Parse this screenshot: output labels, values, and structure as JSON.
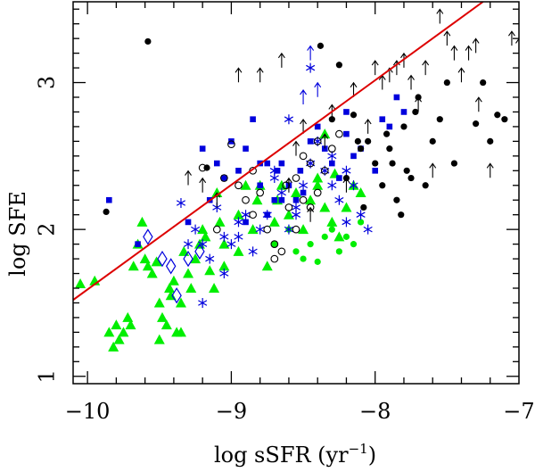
{
  "chart_data": {
    "type": "scatter",
    "title": "",
    "xlabel": "log sSFR (yr",
    "xlabel_sup": "−1",
    "xlabel_close": ")",
    "ylabel": "log SFE",
    "xlim": [
      -10.1,
      -7.0
    ],
    "ylim": [
      0.95,
      3.55
    ],
    "xticks": [
      {
        "value": -10,
        "label": "−10"
      },
      {
        "value": -9,
        "label": "−9"
      },
      {
        "value": -8,
        "label": "−8"
      },
      {
        "value": -7,
        "label": "−7"
      }
    ],
    "yticks": [
      {
        "value": 1,
        "label": "1"
      },
      {
        "value": 2,
        "label": "2"
      },
      {
        "value": 3,
        "label": "3"
      }
    ],
    "colors": {
      "black": "#000000",
      "blue": "#0000dd",
      "green": "#00ee00",
      "red": "#dd0000"
    },
    "fit_line": {
      "name": "relation",
      "color": "#dd0000",
      "x": [
        -10.1,
        -7.25
      ],
      "y": [
        1.52,
        3.55
      ]
    },
    "series": [
      {
        "name": "green triangles",
        "marker": "triangle",
        "color": "#00ee00",
        "points": [
          [
            -10.05,
            1.63
          ],
          [
            -9.95,
            1.65
          ],
          [
            -9.85,
            1.3
          ],
          [
            -9.82,
            1.2
          ],
          [
            -9.8,
            1.35
          ],
          [
            -9.78,
            1.25
          ],
          [
            -9.75,
            1.3
          ],
          [
            -9.72,
            1.4
          ],
          [
            -9.7,
            1.35
          ],
          [
            -9.68,
            1.75
          ],
          [
            -9.65,
            1.9
          ],
          [
            -9.62,
            2.05
          ],
          [
            -9.6,
            1.8
          ],
          [
            -9.58,
            1.75
          ],
          [
            -9.55,
            1.7
          ],
          [
            -9.52,
            1.78
          ],
          [
            -9.5,
            1.5
          ],
          [
            -9.48,
            1.4
          ],
          [
            -9.45,
            1.35
          ],
          [
            -9.43,
            1.6
          ],
          [
            -9.42,
            1.55
          ],
          [
            -9.4,
            1.65
          ],
          [
            -9.38,
            1.3
          ],
          [
            -9.35,
            1.5
          ],
          [
            -9.33,
            1.85
          ],
          [
            -9.3,
            1.7
          ],
          [
            -9.28,
            1.6
          ],
          [
            -9.25,
            1.8
          ],
          [
            -9.22,
            1.9
          ],
          [
            -9.2,
            2.0
          ],
          [
            -9.18,
            1.95
          ],
          [
            -9.15,
            1.72
          ],
          [
            -9.12,
            1.6
          ],
          [
            -9.1,
            2.25
          ],
          [
            -9.08,
            2.05
          ],
          [
            -9.05,
            1.9
          ],
          [
            -8.95,
            2.1
          ],
          [
            -8.9,
            2.3
          ],
          [
            -8.85,
            2.0
          ],
          [
            -8.82,
            2.2
          ],
          [
            -8.8,
            2.3
          ],
          [
            -8.75,
            1.75
          ],
          [
            -8.7,
            2.05
          ],
          [
            -8.68,
            2.2
          ],
          [
            -8.65,
            2.3
          ],
          [
            -8.6,
            2.1
          ],
          [
            -8.55,
            2.25
          ],
          [
            -8.5,
            2.0
          ],
          [
            -8.45,
            2.2
          ],
          [
            -8.4,
            2.3
          ],
          [
            -8.35,
            2.15
          ],
          [
            -8.3,
            2.05
          ],
          [
            -8.25,
            1.95
          ],
          [
            -8.2,
            2.15
          ],
          [
            -8.15,
            2.3
          ],
          [
            -8.1,
            2.25
          ],
          [
            -8.4,
            2.35
          ],
          [
            -9.05,
            1.75
          ],
          [
            -8.28,
            2.38
          ],
          [
            -8.35,
            2.65
          ],
          [
            -8.95,
            1.85
          ],
          [
            -9.35,
            1.3
          ],
          [
            -9.5,
            1.25
          ]
        ]
      },
      {
        "name": "green dots",
        "marker": "filled-circle",
        "color": "#00ee00",
        "points": [
          [
            -8.7,
            1.9
          ],
          [
            -8.5,
            1.8
          ],
          [
            -8.4,
            1.78
          ],
          [
            -8.35,
            1.95
          ],
          [
            -8.3,
            2.0
          ],
          [
            -8.25,
            1.85
          ],
          [
            -8.2,
            1.95
          ],
          [
            -8.15,
            1.9
          ],
          [
            -8.1,
            2.05
          ],
          [
            -8.6,
            2.0
          ],
          [
            -8.45,
            1.9
          ],
          [
            -8.55,
            1.85
          ]
        ]
      },
      {
        "name": "blue squares",
        "marker": "filled-square",
        "color": "#0000dd",
        "points": [
          [
            -9.85,
            2.2
          ],
          [
            -9.65,
            1.9
          ],
          [
            -9.3,
            2.05
          ],
          [
            -9.2,
            2.55
          ],
          [
            -9.1,
            2.45
          ],
          [
            -9.05,
            2.35
          ],
          [
            -9.0,
            2.6
          ],
          [
            -8.95,
            2.4
          ],
          [
            -8.9,
            2.55
          ],
          [
            -8.85,
            2.75
          ],
          [
            -8.8,
            2.3
          ],
          [
            -8.75,
            2.45
          ],
          [
            -8.7,
            2.2
          ],
          [
            -8.68,
            2.4
          ],
          [
            -8.65,
            2.45
          ],
          [
            -8.6,
            2.3
          ],
          [
            -8.55,
            2.2
          ],
          [
            -8.52,
            2.4
          ],
          [
            -8.5,
            2.25
          ],
          [
            -8.45,
            2.6
          ],
          [
            -8.4,
            2.7
          ],
          [
            -8.35,
            2.55
          ],
          [
            -8.3,
            2.45
          ],
          [
            -8.25,
            2.35
          ],
          [
            -8.2,
            2.8
          ],
          [
            -8.15,
            2.5
          ],
          [
            -8.1,
            2.55
          ],
          [
            -8.0,
            2.4
          ],
          [
            -7.95,
            2.75
          ],
          [
            -7.9,
            2.7
          ],
          [
            -7.85,
            2.9
          ],
          [
            -7.8,
            2.8
          ],
          [
            -8.65,
            2.2
          ],
          [
            -8.2,
            2.65
          ],
          [
            -9.15,
            2.2
          ],
          [
            -8.75,
            2.1
          ],
          [
            -8.9,
            2.05
          ],
          [
            -8.8,
            2.45
          ]
        ]
      },
      {
        "name": "blue asterisks",
        "marker": "asterisk",
        "color": "#0000dd",
        "points": [
          [
            -9.35,
            2.18
          ],
          [
            -9.25,
            2.0
          ],
          [
            -9.2,
            1.9
          ],
          [
            -9.15,
            1.8
          ],
          [
            -9.1,
            2.15
          ],
          [
            -9.05,
            1.95
          ],
          [
            -9.0,
            1.9
          ],
          [
            -8.95,
            2.05
          ],
          [
            -8.9,
            2.1
          ],
          [
            -8.85,
            1.85
          ],
          [
            -8.8,
            2.0
          ],
          [
            -8.75,
            2.1
          ],
          [
            -8.7,
            2.35
          ],
          [
            -8.65,
            2.25
          ],
          [
            -8.6,
            2.0
          ],
          [
            -8.55,
            2.15
          ],
          [
            -8.5,
            2.3
          ],
          [
            -8.45,
            2.45
          ],
          [
            -8.4,
            2.6
          ],
          [
            -8.35,
            2.4
          ],
          [
            -8.3,
            2.3
          ],
          [
            -8.25,
            2.2
          ],
          [
            -8.2,
            2.4
          ],
          [
            -8.15,
            2.3
          ],
          [
            -8.1,
            2.1
          ],
          [
            -8.05,
            2.0
          ],
          [
            -8.45,
            3.1
          ],
          [
            -8.6,
            2.75
          ],
          [
            -9.2,
            1.5
          ],
          [
            -9.05,
            1.7
          ],
          [
            -8.95,
            1.95
          ],
          [
            -8.7,
            2.4
          ],
          [
            -8.55,
            2.1
          ],
          [
            -8.3,
            2.5
          ],
          [
            -8.2,
            2.05
          ],
          [
            -9.3,
            1.9
          ]
        ]
      },
      {
        "name": "blue diamonds",
        "marker": "open-diamond",
        "color": "#0000dd",
        "points": [
          [
            -9.58,
            1.95
          ],
          [
            -9.48,
            1.8
          ],
          [
            -9.42,
            1.75
          ],
          [
            -9.38,
            1.55
          ],
          [
            -9.3,
            1.8
          ],
          [
            -9.22,
            1.85
          ]
        ]
      },
      {
        "name": "open circles",
        "marker": "open-circle",
        "color": "#000000",
        "points": [
          [
            -9.2,
            2.42
          ],
          [
            -9.05,
            2.35
          ],
          [
            -9.0,
            2.58
          ],
          [
            -8.95,
            2.3
          ],
          [
            -8.9,
            2.2
          ],
          [
            -8.85,
            2.1
          ],
          [
            -8.8,
            2.25
          ],
          [
            -8.75,
            2.0
          ],
          [
            -8.7,
            1.9
          ],
          [
            -8.65,
            1.85
          ],
          [
            -8.6,
            2.15
          ],
          [
            -8.55,
            2.35
          ],
          [
            -8.5,
            2.5
          ],
          [
            -8.45,
            2.45
          ],
          [
            -8.4,
            2.6
          ],
          [
            -8.35,
            2.4
          ],
          [
            -8.3,
            2.55
          ],
          [
            -8.25,
            2.65
          ],
          [
            -8.55,
            2.0
          ],
          [
            -8.7,
            1.8
          ],
          [
            -8.62,
            2.3
          ],
          [
            -8.5,
            2.2
          ],
          [
            -8.4,
            2.25
          ],
          [
            -9.1,
            2.0
          ],
          [
            -8.85,
            2.4
          ],
          [
            -8.45,
            2.15
          ]
        ]
      },
      {
        "name": "black dots",
        "marker": "filled-circle",
        "color": "#000000",
        "points": [
          [
            -9.87,
            2.12
          ],
          [
            -9.58,
            3.28
          ],
          [
            -9.17,
            2.42
          ],
          [
            -8.38,
            3.25
          ],
          [
            -8.25,
            3.12
          ],
          [
            -8.15,
            2.78
          ],
          [
            -8.12,
            2.6
          ],
          [
            -8.1,
            2.55
          ],
          [
            -8.08,
            2.15
          ],
          [
            -8.05,
            2.6
          ],
          [
            -8.0,
            2.45
          ],
          [
            -7.95,
            2.3
          ],
          [
            -7.92,
            2.65
          ],
          [
            -7.9,
            2.55
          ],
          [
            -7.88,
            2.45
          ],
          [
            -7.85,
            2.2
          ],
          [
            -7.82,
            2.1
          ],
          [
            -7.8,
            2.7
          ],
          [
            -7.78,
            2.4
          ],
          [
            -7.75,
            2.35
          ],
          [
            -7.72,
            2.8
          ],
          [
            -7.7,
            2.9
          ],
          [
            -7.65,
            2.3
          ],
          [
            -7.6,
            2.6
          ],
          [
            -7.55,
            2.75
          ],
          [
            -7.5,
            3.0
          ],
          [
            -7.45,
            2.45
          ],
          [
            -7.3,
            2.72
          ],
          [
            -7.25,
            3.0
          ],
          [
            -7.15,
            2.78
          ],
          [
            -7.1,
            2.75
          ],
          [
            -7.2,
            2.6
          ],
          [
            -8.3,
            2.75
          ],
          [
            -8.2,
            2.35
          ]
        ]
      },
      {
        "name": "arrows (lower limits)",
        "marker": "up-arrow",
        "color": "#000000",
        "points": [
          [
            -9.3,
            2.35
          ],
          [
            -9.2,
            2.3
          ],
          [
            -9.1,
            2.2
          ],
          [
            -8.95,
            3.05
          ],
          [
            -8.8,
            3.05
          ],
          [
            -8.65,
            3.15
          ],
          [
            -8.6,
            2.3
          ],
          [
            -8.55,
            2.55
          ],
          [
            -8.5,
            2.7
          ],
          [
            -8.45,
            2.1
          ],
          [
            -8.35,
            2.6
          ],
          [
            -8.3,
            2.8
          ],
          [
            -8.2,
            2.3
          ],
          [
            -8.15,
            2.95
          ],
          [
            -8.05,
            2.7
          ],
          [
            -8.0,
            3.1
          ],
          [
            -7.95,
            3.0
          ],
          [
            -7.9,
            3.05
          ],
          [
            -7.85,
            3.1
          ],
          [
            -7.8,
            3.15
          ],
          [
            -7.75,
            3.0
          ],
          [
            -7.7,
            2.85
          ],
          [
            -7.65,
            3.1
          ],
          [
            -7.6,
            2.4
          ],
          [
            -7.55,
            3.45
          ],
          [
            -7.5,
            3.3
          ],
          [
            -7.45,
            3.2
          ],
          [
            -7.4,
            3.05
          ],
          [
            -7.35,
            3.2
          ],
          [
            -7.3,
            3.25
          ],
          [
            -7.28,
            2.85
          ],
          [
            -7.2,
            2.4
          ],
          [
            -7.0,
            3.25
          ],
          [
            -7.05,
            3.3
          ]
        ]
      },
      {
        "name": "blue arrows",
        "marker": "up-arrow",
        "color": "#0000dd",
        "points": [
          [
            -8.45,
            3.2
          ],
          [
            -8.4,
            2.95
          ],
          [
            -8.5,
            2.9
          ]
        ]
      }
    ]
  }
}
